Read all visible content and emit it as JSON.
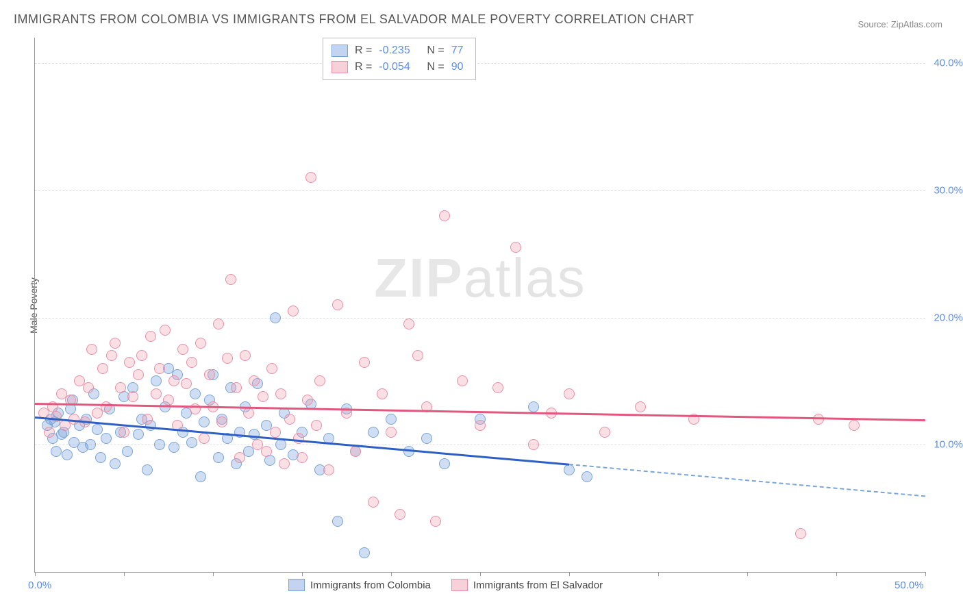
{
  "title": "IMMIGRANTS FROM COLOMBIA VS IMMIGRANTS FROM EL SALVADOR MALE POVERTY CORRELATION CHART",
  "source": "Source: ZipAtlas.com",
  "ylabel": "Male Poverty",
  "watermark_a": "ZIP",
  "watermark_b": "atlas",
  "chart": {
    "type": "scatter",
    "xlim": [
      0,
      50
    ],
    "ylim": [
      0,
      42
    ],
    "x_ticks": [
      0,
      5,
      10,
      15,
      20,
      25,
      30,
      35,
      40,
      45,
      50
    ],
    "x_tick_labels": {
      "0": "0.0%",
      "50": "50.0%"
    },
    "y_ticks": [
      10,
      20,
      30,
      40
    ],
    "y_tick_labels": {
      "10": "10.0%",
      "20": "20.0%",
      "30": "30.0%",
      "40": "40.0%"
    },
    "grid_color": "#dddddd",
    "background_color": "#ffffff",
    "axis_color": "#999999",
    "y_tick_label_color": "#5b8def",
    "x_tick_label_color": "#5b8def",
    "series": [
      {
        "name": "Immigrants from Colombia",
        "color_fill": "rgba(120,160,220,0.35)",
        "color_stroke": "#7aa5d8",
        "trend_color": "#2d5fc4",
        "trend_dash_color": "#7aa5d8",
        "R": -0.235,
        "N": 77,
        "marker_size": 14,
        "trend": {
          "x1": 0,
          "y1": 12.2,
          "x2_solid": 30,
          "y2_solid": 8.5,
          "x2_dash": 50,
          "y2_dash": 6.0
        },
        "points": [
          [
            0.7,
            11.5
          ],
          [
            0.9,
            12.0
          ],
          [
            1.0,
            10.5
          ],
          [
            1.1,
            11.8
          ],
          [
            1.2,
            9.5
          ],
          [
            1.3,
            12.5
          ],
          [
            1.5,
            10.8
          ],
          [
            1.6,
            11.0
          ],
          [
            1.8,
            9.2
          ],
          [
            2.0,
            12.8
          ],
          [
            2.1,
            13.5
          ],
          [
            2.2,
            10.2
          ],
          [
            2.5,
            11.5
          ],
          [
            2.7,
            9.8
          ],
          [
            2.9,
            12.0
          ],
          [
            3.1,
            10.0
          ],
          [
            3.3,
            14.0
          ],
          [
            3.5,
            11.2
          ],
          [
            3.7,
            9.0
          ],
          [
            4.0,
            10.5
          ],
          [
            4.2,
            12.8
          ],
          [
            4.5,
            8.5
          ],
          [
            4.8,
            11.0
          ],
          [
            5.0,
            13.8
          ],
          [
            5.2,
            9.5
          ],
          [
            5.5,
            14.5
          ],
          [
            5.8,
            10.8
          ],
          [
            6.0,
            12.0
          ],
          [
            6.3,
            8.0
          ],
          [
            6.5,
            11.5
          ],
          [
            6.8,
            15.0
          ],
          [
            7.0,
            10.0
          ],
          [
            7.3,
            13.0
          ],
          [
            7.5,
            16.0
          ],
          [
            7.8,
            9.8
          ],
          [
            8.0,
            15.5
          ],
          [
            8.3,
            11.0
          ],
          [
            8.5,
            12.5
          ],
          [
            8.8,
            10.2
          ],
          [
            9.0,
            14.0
          ],
          [
            9.3,
            7.5
          ],
          [
            9.5,
            11.8
          ],
          [
            9.8,
            13.5
          ],
          [
            10.0,
            15.5
          ],
          [
            10.3,
            9.0
          ],
          [
            10.5,
            12.0
          ],
          [
            10.8,
            10.5
          ],
          [
            11.0,
            14.5
          ],
          [
            11.3,
            8.5
          ],
          [
            11.5,
            11.0
          ],
          [
            11.8,
            13.0
          ],
          [
            12.0,
            9.5
          ],
          [
            12.3,
            10.8
          ],
          [
            12.5,
            14.8
          ],
          [
            13.0,
            11.5
          ],
          [
            13.2,
            8.8
          ],
          [
            13.5,
            20.0
          ],
          [
            13.8,
            10.0
          ],
          [
            14.0,
            12.5
          ],
          [
            14.5,
            9.2
          ],
          [
            15.0,
            11.0
          ],
          [
            15.5,
            13.2
          ],
          [
            16.0,
            8.0
          ],
          [
            16.5,
            10.5
          ],
          [
            17.0,
            4.0
          ],
          [
            17.5,
            12.8
          ],
          [
            18.0,
            9.5
          ],
          [
            18.5,
            1.5
          ],
          [
            19.0,
            11.0
          ],
          [
            20.0,
            12.0
          ],
          [
            21.0,
            9.5
          ],
          [
            22.0,
            10.5
          ],
          [
            23.0,
            8.5
          ],
          [
            25.0,
            12.0
          ],
          [
            28.0,
            13.0
          ],
          [
            30.0,
            8.0
          ],
          [
            31.0,
            7.5
          ]
        ]
      },
      {
        "name": "Immigrants from El Salvador",
        "color_fill": "rgba(240,150,170,0.3)",
        "color_stroke": "#e890a8",
        "trend_color": "#e2577e",
        "R": -0.054,
        "N": 90,
        "marker_size": 14,
        "trend": {
          "x1": 0,
          "y1": 13.3,
          "x2": 50,
          "y2": 12.0
        },
        "points": [
          [
            0.5,
            12.5
          ],
          [
            0.8,
            11.0
          ],
          [
            1.0,
            13.0
          ],
          [
            1.2,
            12.2
          ],
          [
            1.5,
            14.0
          ],
          [
            1.7,
            11.5
          ],
          [
            2.0,
            13.5
          ],
          [
            2.2,
            12.0
          ],
          [
            2.5,
            15.0
          ],
          [
            2.8,
            11.8
          ],
          [
            3.0,
            14.5
          ],
          [
            3.2,
            17.5
          ],
          [
            3.5,
            12.5
          ],
          [
            3.8,
            16.0
          ],
          [
            4.0,
            13.0
          ],
          [
            4.3,
            17.0
          ],
          [
            4.5,
            18.0
          ],
          [
            4.8,
            14.5
          ],
          [
            5.0,
            11.0
          ],
          [
            5.3,
            16.5
          ],
          [
            5.5,
            13.8
          ],
          [
            5.8,
            15.5
          ],
          [
            6.0,
            17.0
          ],
          [
            6.3,
            12.0
          ],
          [
            6.5,
            18.5
          ],
          [
            6.8,
            14.0
          ],
          [
            7.0,
            16.0
          ],
          [
            7.3,
            19.0
          ],
          [
            7.5,
            13.5
          ],
          [
            7.8,
            15.0
          ],
          [
            8.0,
            11.5
          ],
          [
            8.3,
            17.5
          ],
          [
            8.5,
            14.8
          ],
          [
            8.8,
            16.5
          ],
          [
            9.0,
            12.8
          ],
          [
            9.3,
            18.0
          ],
          [
            9.5,
            10.5
          ],
          [
            9.8,
            15.5
          ],
          [
            10.0,
            13.0
          ],
          [
            10.3,
            19.5
          ],
          [
            10.5,
            11.8
          ],
          [
            10.8,
            16.8
          ],
          [
            11.0,
            23.0
          ],
          [
            11.3,
            14.5
          ],
          [
            11.5,
            9.0
          ],
          [
            11.8,
            17.0
          ],
          [
            12.0,
            12.5
          ],
          [
            12.3,
            15.0
          ],
          [
            12.5,
            10.0
          ],
          [
            12.8,
            13.8
          ],
          [
            13.0,
            9.5
          ],
          [
            13.3,
            16.0
          ],
          [
            13.5,
            11.0
          ],
          [
            13.8,
            14.0
          ],
          [
            14.0,
            8.5
          ],
          [
            14.3,
            12.0
          ],
          [
            14.5,
            20.5
          ],
          [
            14.8,
            10.5
          ],
          [
            15.0,
            9.0
          ],
          [
            15.3,
            13.5
          ],
          [
            15.5,
            31.0
          ],
          [
            15.8,
            11.5
          ],
          [
            16.0,
            15.0
          ],
          [
            16.5,
            8.0
          ],
          [
            17.0,
            21.0
          ],
          [
            17.5,
            12.5
          ],
          [
            18.0,
            9.5
          ],
          [
            18.5,
            16.5
          ],
          [
            19.0,
            5.5
          ],
          [
            19.5,
            14.0
          ],
          [
            20.0,
            11.0
          ],
          [
            20.5,
            4.5
          ],
          [
            21.0,
            19.5
          ],
          [
            21.5,
            17.0
          ],
          [
            22.0,
            13.0
          ],
          [
            22.5,
            4.0
          ],
          [
            23.0,
            28.0
          ],
          [
            24.0,
            15.0
          ],
          [
            25.0,
            11.5
          ],
          [
            26.0,
            14.5
          ],
          [
            27.0,
            25.5
          ],
          [
            28.0,
            10.0
          ],
          [
            29.0,
            12.5
          ],
          [
            30.0,
            14.0
          ],
          [
            32.0,
            11.0
          ],
          [
            34.0,
            13.0
          ],
          [
            37.0,
            12.0
          ],
          [
            43.0,
            3.0
          ],
          [
            44.0,
            12.0
          ],
          [
            46.0,
            11.5
          ]
        ]
      }
    ]
  },
  "legend_stats": [
    {
      "swatch": "blue",
      "R": "-0.235",
      "N": "77"
    },
    {
      "swatch": "pink",
      "R": "-0.054",
      "N": "90"
    }
  ],
  "bottom_legend": [
    {
      "swatch": "blue",
      "label": "Immigrants from Colombia"
    },
    {
      "swatch": "pink",
      "label": "Immigrants from El Salvador"
    }
  ]
}
